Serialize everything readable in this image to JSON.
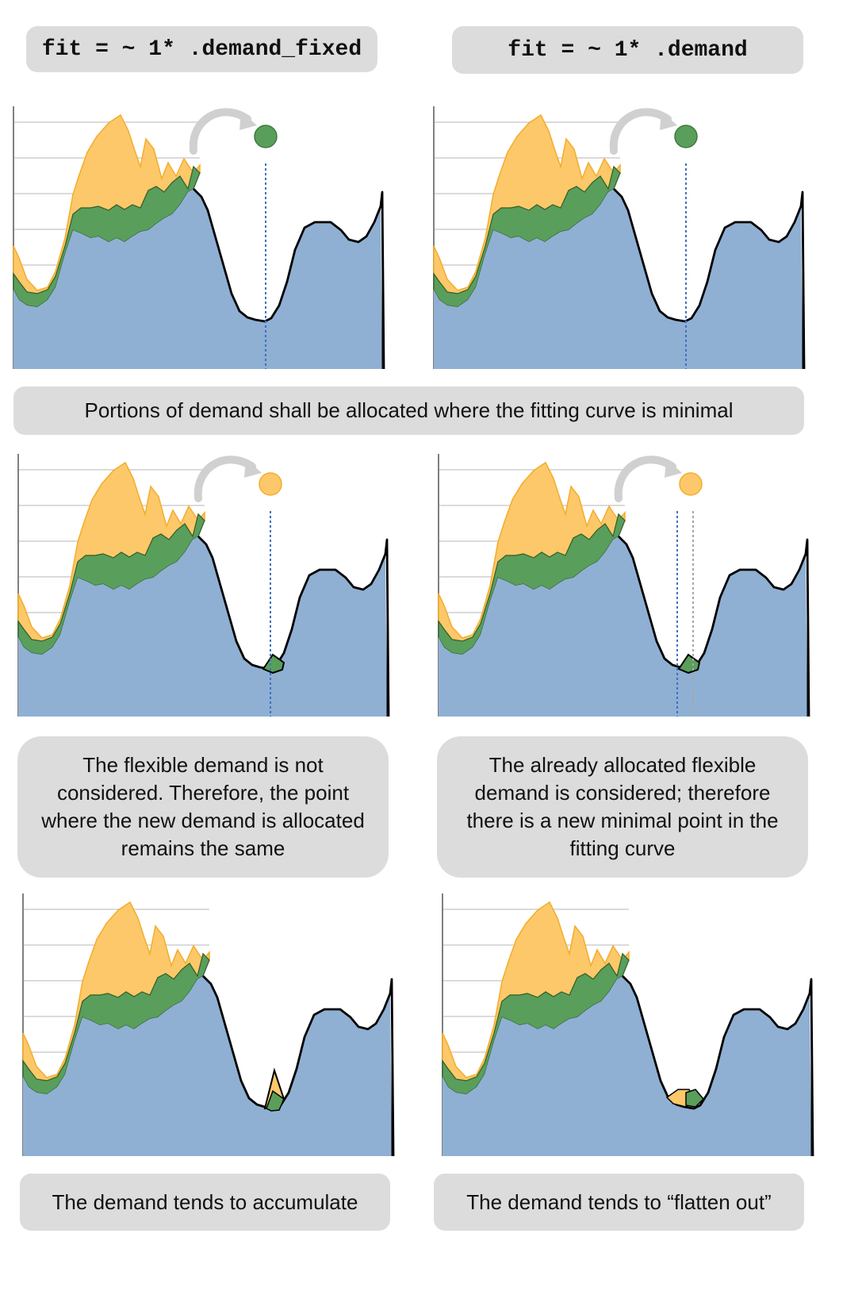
{
  "headers": {
    "left": "fit = ~ 1* .demand_fixed",
    "right": "fit = ~ 1* .demand"
  },
  "captions": {
    "middle": "Portions of demand shall be allocated where the fitting curve is minimal",
    "left_mid": "The flexible demand is not considered. Therefore, the point where the new demand is allocated remains the same",
    "right_mid": "The already allocated flexible demand is considered; therefore there is a new minimal point in the fitting curve",
    "left_bottom": "The demand tends to accumulate",
    "right_bottom": "The demand tends to “flatten out”"
  },
  "colors": {
    "fixed_demand": "#8fb0d3",
    "flexible_green": "#5a9e5b",
    "flexible_orange": "#fcc869",
    "orange_edge": "#f3ad2c",
    "curve": "#000000",
    "marker_line": "#3f6fc4",
    "previous_marker": "#a6a6a6",
    "arrow": "#d0d0d0",
    "caption_box": "#dcdcdc"
  },
  "panels": [
    {
      "id": "row1-left",
      "marker": "green",
      "bump": "none"
    },
    {
      "id": "row1-right",
      "marker": "green",
      "bump": "none"
    },
    {
      "id": "row2-left",
      "marker": "orange",
      "bump": "green-at-min"
    },
    {
      "id": "row2-right",
      "marker": "orange",
      "bump": "green-at-min-with-shifted-point"
    },
    {
      "id": "row3-left",
      "marker": "none",
      "bump": "stacked-accumulated"
    },
    {
      "id": "row3-right",
      "marker": "none",
      "bump": "flattened"
    }
  ]
}
